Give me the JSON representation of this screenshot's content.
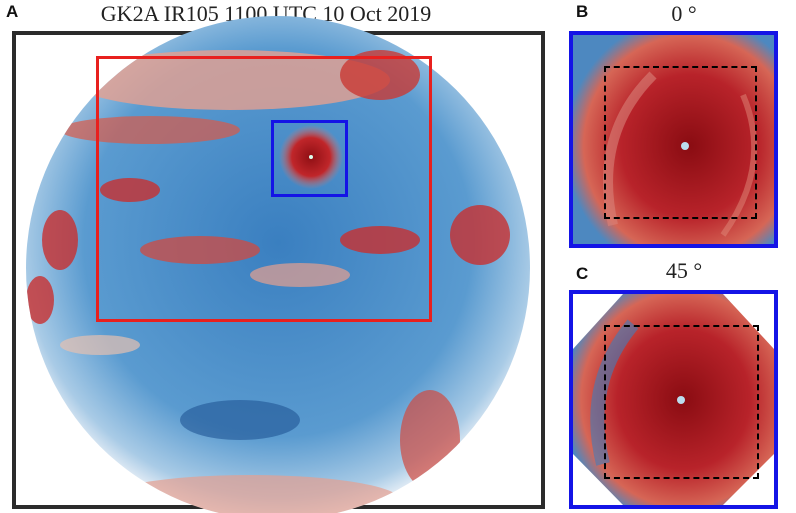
{
  "panels": {
    "a": {
      "label": "A",
      "title": "GK2A IR105 1100 UTC 10 Oct 2019"
    },
    "b": {
      "label": "B",
      "title": "0 °"
    },
    "c": {
      "label": "C",
      "title": "45 °"
    }
  },
  "colors": {
    "frame": "#2b2b2b",
    "region_box": "#e8201e",
    "typhoon_box": "#1414e6",
    "crop_box": "#000000",
    "cold_cloud": "#b01818",
    "clear_sky": "#2f6fb0"
  }
}
